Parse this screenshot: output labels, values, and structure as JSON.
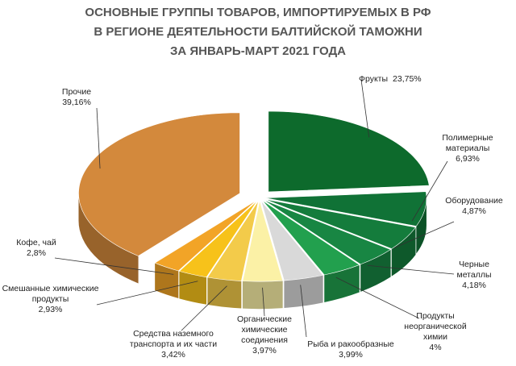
{
  "chart_data": {
    "type": "pie",
    "title": [
      "ОСНОВНЫЕ ГРУППЫ ТОВАРОВ, ИМПОРТИРУЕМЫХ В РФ",
      "В РЕГИОНЕ ДЕЯТЕЛЬНОСТИ БАЛТИЙСКОЙ ТАМОЖНИ",
      "ЗА ЯНВАРЬ-МАРТ 2021 ГОДА"
    ],
    "categories": [
      "Фрукты",
      "Полимерные материалы",
      "Оборудование",
      "Черные металлы",
      "Продукты неорганической химии",
      "Рыба и ракообразные",
      "Органические химические соединения",
      "Средства наземного транспорта и их части",
      "Смешанные химические продукты",
      "Кофе, чай",
      "Прочие"
    ],
    "values": [
      23.75,
      6.93,
      4.87,
      4.18,
      4,
      3.99,
      3.97,
      3.42,
      2.93,
      2.8,
      39.16
    ],
    "value_labels": [
      "23,75%",
      "6,93%",
      "4,87%",
      "4,18%",
      "4%",
      "3,99%",
      "3,97%",
      "3,42%",
      "2,93%",
      "2,8%",
      "39,16%"
    ],
    "colors": [
      "#0d6a2c",
      "#107236",
      "#147c3c",
      "#188643",
      "#22a04e",
      "#d9d9d9",
      "#fbf1a6",
      "#f3cb4a",
      "#f7c21a",
      "#f2a427",
      "#d3893c"
    ]
  }
}
